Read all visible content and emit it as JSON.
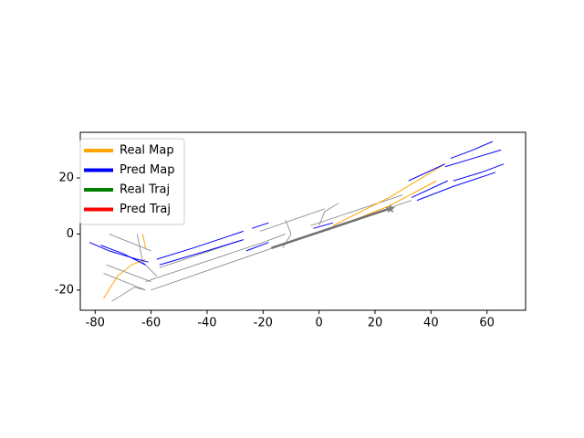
{
  "chart_data": {
    "type": "line",
    "xlim": [
      -85.3,
      73.8
    ],
    "ylim": [
      -27.2,
      36.3
    ],
    "xticks": [
      -80,
      -60,
      -40,
      -20,
      0,
      20,
      40,
      60
    ],
    "yticks": [
      -20,
      0,
      20
    ],
    "legend": "upper left",
    "series": [
      {
        "color": "#808080",
        "width": 0.8,
        "x": [
          -60,
          -5,
          null,
          7,
          33,
          null,
          -62,
          -20,
          -12,
          null,
          -3,
          30,
          null,
          -57,
          -27,
          null,
          -21,
          2,
          null,
          -76,
          -60,
          null,
          -75,
          -60,
          null,
          -77,
          -62,
          null,
          -74,
          -66,
          -62,
          null,
          -65,
          -63,
          -58,
          null,
          -13,
          -10,
          -12,
          null,
          0,
          2,
          7
        ],
        "y": [
          -20,
          -1,
          null,
          3,
          12,
          null,
          -17,
          -3,
          0,
          null,
          3,
          14,
          null,
          -12,
          -2,
          null,
          1,
          9,
          null,
          -11,
          -17,
          null,
          0,
          -6,
          null,
          -14,
          -20,
          null,
          -24,
          -19,
          -20,
          null,
          0,
          -10,
          -15,
          null,
          -5,
          0,
          5,
          null,
          3,
          8,
          11
        ]
      },
      {
        "name": "Real Map",
        "color": "#ffa500",
        "width": 1,
        "x": [
          -77,
          -72,
          -67,
          -62,
          null,
          -63,
          -62,
          null,
          5,
          25,
          45,
          null,
          5,
          25,
          42
        ],
        "y": [
          -23,
          -15,
          -11,
          -9,
          null,
          0,
          -5,
          null,
          3,
          13,
          25,
          null,
          2,
          10,
          19
        ]
      },
      {
        "name": "Pred Map",
        "color": "#0000ff",
        "width": 1,
        "x": [
          -82,
          -75,
          -65,
          -61,
          null,
          -58,
          -45,
          -30,
          -27,
          null,
          -24,
          -18,
          null,
          -2,
          5,
          null,
          32,
          45,
          null,
          47,
          55,
          62,
          null,
          -78,
          -70,
          -62,
          null,
          -57,
          -40,
          -27,
          null,
          -26,
          -18,
          null,
          33,
          46,
          null,
          48,
          58,
          66,
          null,
          35,
          48,
          63,
          null,
          45,
          55,
          65
        ],
        "y": [
          -3,
          -6,
          -9,
          -10,
          null,
          -9,
          -5,
          0,
          1,
          null,
          2,
          4,
          null,
          2,
          4,
          null,
          19,
          25,
          null,
          27,
          30,
          33,
          null,
          -4,
          -7,
          -11,
          null,
          -11,
          -6,
          -2,
          null,
          -6,
          -3,
          null,
          13,
          19,
          null,
          19,
          22,
          25,
          null,
          12,
          17,
          22,
          null,
          24,
          27,
          30
        ]
      },
      {
        "name": "Real Traj",
        "color": "#008000",
        "width": 1.5,
        "x": [
          -17,
          25
        ],
        "y": [
          -5,
          9
        ]
      },
      {
        "name": "Pred Traj",
        "color": "#ff0000",
        "width": 1.5,
        "x": [
          -17,
          25
        ],
        "y": [
          -5,
          9
        ]
      },
      {
        "color": "#707070",
        "width": 2.5,
        "x": [
          -17,
          25
        ],
        "y": [
          -5,
          9
        ]
      }
    ],
    "marker": {
      "x": 25.5,
      "y": 9,
      "color": "#808080"
    }
  }
}
